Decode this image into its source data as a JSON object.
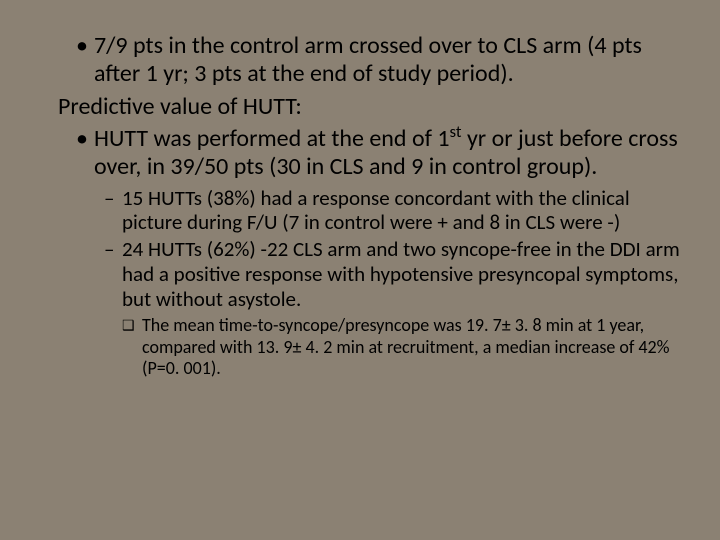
{
  "slide": {
    "background_color": "#8b8173",
    "text_color": "#000000",
    "font_family": "Calibri",
    "bullets": {
      "l1_a": "7/9 pts in the control arm crossed over to CLS arm (4 pts after 1 yr; 3 pts at the end of study period).",
      "heading": "Predictive value of HUTT:",
      "l1_b_pre": "HUTT was performed at the end of 1",
      "l1_b_sup": "st",
      "l1_b_post": " yr or just before cross over, in 39/50 pts (30 in CLS and 9 in control group).",
      "l2_a": "15 HUTTs (38%) had a response concordant with the clinical picture during F/U (7 in control were + and 8 in CLS were -)",
      "l2_b": "24 HUTTs (62%) -22 CLS arm and two syncope-free in the DDI arm had a positive response with hypotensive presyncopal symptoms, but without asystole.",
      "l3_a": "The mean time-to-syncope/presyncope was 19. 7± 3. 8 min at 1 year, compared with 13. 9± 4. 2 min at recruitment, a median increase of 42% (P=0. 001)."
    },
    "markers": {
      "disc": "•",
      "dash": "–",
      "square": "❑"
    }
  }
}
